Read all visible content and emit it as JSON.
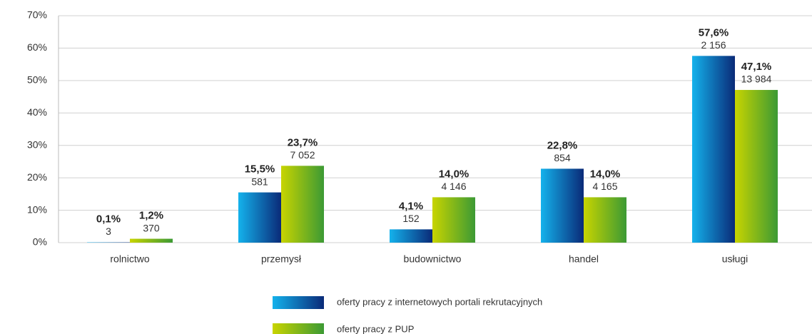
{
  "chart_data": {
    "type": "bar",
    "categories": [
      "rolnictwo",
      "przemysł",
      "budownictwo",
      "handel",
      "usługi"
    ],
    "series": [
      {
        "name": "oferty pracy z internetowych portali rekrutacyjnych",
        "colors": [
          "#14b2ec",
          "#0a2a78"
        ],
        "values": [
          0.1,
          15.5,
          4.1,
          22.8,
          57.6
        ],
        "value_labels": [
          "0,1%",
          "15,5%",
          "4,1%",
          "22,8%",
          "57,6%"
        ],
        "count_labels": [
          "3",
          "581",
          "152",
          "854",
          "2 156"
        ]
      },
      {
        "name": "oferty pracy z PUP",
        "colors": [
          "#c8d400",
          "#3c9a34"
        ],
        "values": [
          1.2,
          23.7,
          14.0,
          14.0,
          47.1
        ],
        "value_labels": [
          "1,2%",
          "23,7%",
          "14,0%",
          "14,0%",
          "47,1%"
        ],
        "count_labels": [
          "370",
          "7 052",
          "4 146",
          "4 165",
          "13 984"
        ]
      }
    ],
    "ylim": [
      0,
      70
    ],
    "yticks": [
      {
        "value": 0,
        "label": "0%"
      },
      {
        "value": 10,
        "label": "10%"
      },
      {
        "value": 20,
        "label": "20%"
      },
      {
        "value": 30,
        "label": "30%"
      },
      {
        "value": 40,
        "label": "40%"
      },
      {
        "value": 50,
        "label": "50%"
      },
      {
        "value": 60,
        "label": "60%"
      },
      {
        "value": 70,
        "label": "70%"
      }
    ],
    "grid": true
  }
}
